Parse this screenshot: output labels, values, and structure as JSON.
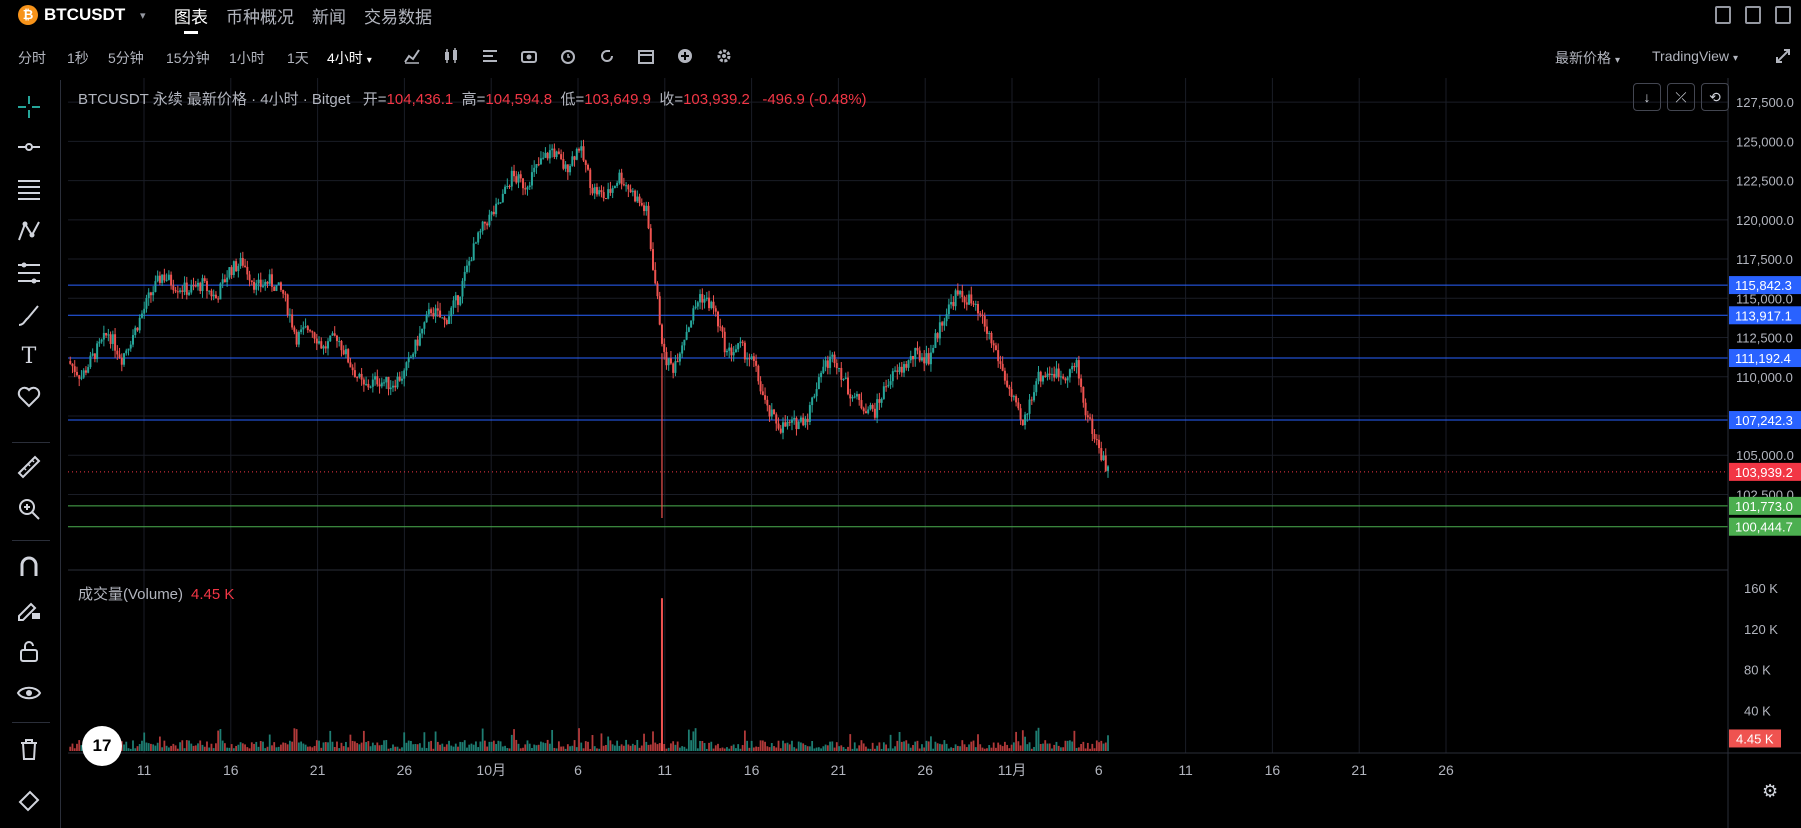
{
  "topbar": {
    "logo_glyph": "₿",
    "symbol": "BTCUSDT",
    "caret": "▾",
    "tabs": [
      "图表",
      "币种概况",
      "新闻",
      "交易数据"
    ],
    "active_tab": 0
  },
  "toolbar": {
    "timeframes": [
      "分时",
      "1秒",
      "5分钟",
      "15分钟",
      "1小时",
      "1天",
      "4小时"
    ],
    "active_timeframe_caret": "▾",
    "tool_icons": [
      "indicator-icon",
      "candle-type-icon",
      "template-icon",
      "camera-icon",
      "alarm-icon",
      "replay-icon",
      "calendar-icon",
      "plus-circle-icon",
      "gear-icon"
    ],
    "price_type": "最新价格",
    "chart_engine": "TradingView",
    "expand_icon": "expand-icon"
  },
  "legend": {
    "title": "BTCUSDT 永续 最新价格 · 4小时 · Bitget",
    "open_label": "开=",
    "open": "104,436.1",
    "high_label": "高=",
    "high": "104,594.8",
    "low_label": "低=",
    "low": "103,649.9",
    "close_label": "收=",
    "close": "103,939.2",
    "change": "-496.9 (-0.48%)"
  },
  "volume_legend": {
    "label": "成交量(Volume)",
    "value": "4.45 K"
  },
  "chart_controls": [
    "↓",
    "⤫",
    "⟲"
  ],
  "tv_logo": "17",
  "chart_data": {
    "type": "candlestick",
    "symbol": "BTCUSDT",
    "interval": "4小时",
    "price_ticks": [
      "127,500.0",
      "125,000.0",
      "122,500.0",
      "120,000.0",
      "117,500.0",
      "115,000.0",
      "112,500.0",
      "110,000.0",
      "107,500.0",
      "105,000.0",
      "102,500.0"
    ],
    "ylim": [
      101000,
      128400
    ],
    "horizontal_lines": [
      {
        "price": 115842.3,
        "label": "115,842.3",
        "color": "#2962ff"
      },
      {
        "price": 113917.1,
        "label": "113,917.1",
        "color": "#2962ff"
      },
      {
        "price": 111192.4,
        "label": "111,192.4",
        "color": "#2962ff"
      },
      {
        "price": 107242.3,
        "label": "107,242.3",
        "color": "#2962ff"
      },
      {
        "price": 101773.0,
        "label": "101,773.0",
        "color": "#4caf50"
      },
      {
        "price": 100444.7,
        "label": "100,444.7",
        "color": "#4caf50"
      }
    ],
    "last_price": {
      "price": 103939.2,
      "label": "103,939.2",
      "color": "#f23645"
    },
    "x_ticks": [
      "11",
      "16",
      "21",
      "26",
      "10月",
      "6",
      "11",
      "16",
      "21",
      "26",
      "11月",
      "6",
      "11",
      "16",
      "21",
      "26"
    ],
    "price_path": [
      {
        "t": 0,
        "p": 111000
      },
      {
        "t": 6,
        "p": 110000
      },
      {
        "t": 12,
        "p": 111500
      },
      {
        "t": 18,
        "p": 112800
      },
      {
        "t": 24,
        "p": 111200
      },
      {
        "t": 30,
        "p": 113000
      },
      {
        "t": 36,
        "p": 115000
      },
      {
        "t": 42,
        "p": 116500
      },
      {
        "t": 48,
        "p": 115800
      },
      {
        "t": 54,
        "p": 115500
      },
      {
        "t": 60,
        "p": 115900
      },
      {
        "t": 66,
        "p": 115000
      },
      {
        "t": 72,
        "p": 116800
      },
      {
        "t": 78,
        "p": 117300
      },
      {
        "t": 84,
        "p": 115700
      },
      {
        "t": 90,
        "p": 116100
      },
      {
        "t": 96,
        "p": 115300
      },
      {
        "t": 102,
        "p": 112500
      },
      {
        "t": 108,
        "p": 113200
      },
      {
        "t": 114,
        "p": 111800
      },
      {
        "t": 120,
        "p": 112600
      },
      {
        "t": 126,
        "p": 110800
      },
      {
        "t": 132,
        "p": 109300
      },
      {
        "t": 138,
        "p": 109800
      },
      {
        "t": 144,
        "p": 109500
      },
      {
        "t": 150,
        "p": 110200
      },
      {
        "t": 156,
        "p": 112300
      },
      {
        "t": 162,
        "p": 114300
      },
      {
        "t": 168,
        "p": 113500
      },
      {
        "t": 174,
        "p": 115000
      },
      {
        "t": 180,
        "p": 117800
      },
      {
        "t": 186,
        "p": 119800
      },
      {
        "t": 192,
        "p": 120800
      },
      {
        "t": 198,
        "p": 122800
      },
      {
        "t": 204,
        "p": 122200
      },
      {
        "t": 210,
        "p": 123500
      },
      {
        "t": 216,
        "p": 124500
      },
      {
        "t": 222,
        "p": 123200
      },
      {
        "t": 228,
        "p": 124700
      },
      {
        "t": 234,
        "p": 122000
      },
      {
        "t": 240,
        "p": 121400
      },
      {
        "t": 246,
        "p": 122800
      },
      {
        "t": 252,
        "p": 121700
      },
      {
        "t": 258,
        "p": 120500
      },
      {
        "t": 262,
        "p": 116000
      },
      {
        "t": 266,
        "p": 111200
      },
      {
        "t": 270,
        "p": 110600
      },
      {
        "t": 276,
        "p": 113000
      },
      {
        "t": 282,
        "p": 115200
      },
      {
        "t": 288,
        "p": 114400
      },
      {
        "t": 294,
        "p": 111500
      },
      {
        "t": 300,
        "p": 111900
      },
      {
        "t": 306,
        "p": 110800
      },
      {
        "t": 312,
        "p": 107800
      },
      {
        "t": 318,
        "p": 106800
      },
      {
        "t": 324,
        "p": 107000
      },
      {
        "t": 330,
        "p": 107500
      },
      {
        "t": 336,
        "p": 110500
      },
      {
        "t": 342,
        "p": 111300
      },
      {
        "t": 348,
        "p": 109200
      },
      {
        "t": 354,
        "p": 108200
      },
      {
        "t": 360,
        "p": 107800
      },
      {
        "t": 366,
        "p": 109800
      },
      {
        "t": 372,
        "p": 110500
      },
      {
        "t": 378,
        "p": 111400
      },
      {
        "t": 384,
        "p": 111200
      },
      {
        "t": 390,
        "p": 113600
      },
      {
        "t": 396,
        "p": 115200
      },
      {
        "t": 402,
        "p": 114900
      },
      {
        "t": 408,
        "p": 113500
      },
      {
        "t": 414,
        "p": 111600
      },
      {
        "t": 420,
        "p": 109100
      },
      {
        "t": 426,
        "p": 106800
      },
      {
        "t": 432,
        "p": 109900
      },
      {
        "t": 438,
        "p": 110300
      },
      {
        "t": 444,
        "p": 110100
      },
      {
        "t": 450,
        "p": 110700
      },
      {
        "t": 454,
        "p": 107800
      },
      {
        "t": 458,
        "p": 106200
      },
      {
        "t": 462,
        "p": 104700
      },
      {
        "t": 464,
        "p": 103939
      }
    ],
    "spike_low": {
      "t": 265,
      "p": 101000
    },
    "volume_ticks": [
      "160 K",
      "120 K",
      "80 K",
      "40 K"
    ],
    "volume_max": 160,
    "volume_spike": {
      "t": 265,
      "value": 150
    },
    "last_volume": {
      "value": 4.45,
      "label": "4.45 K"
    }
  }
}
